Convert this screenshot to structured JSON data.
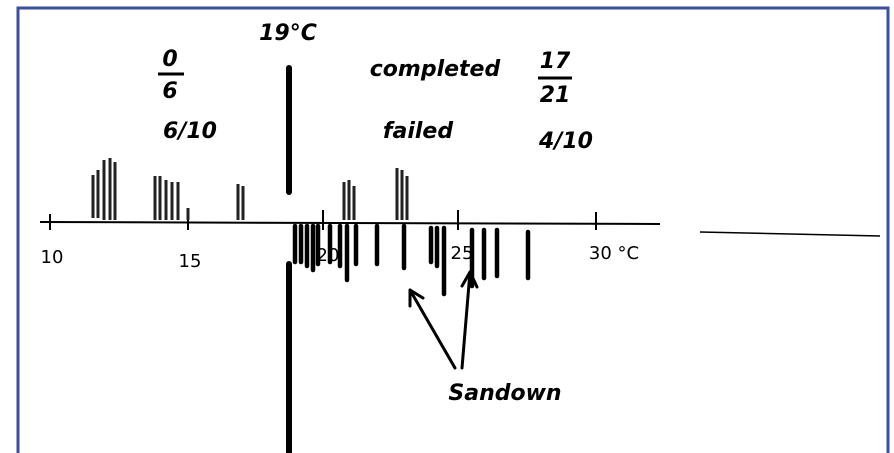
{
  "annotations": {
    "temperature_line": "19°C",
    "left_fraction": {
      "numerator": "0",
      "denominator": "6"
    },
    "left_ratio": "6/10",
    "completed": "completed",
    "failed": "failed",
    "right_fraction": {
      "numerator": "17",
      "denominator": "21"
    },
    "right_ratio": "4/10",
    "arrow_label": "Sandown"
  },
  "axis": {
    "ticks": [
      "10",
      "15",
      "20",
      "25",
      "30 °C"
    ]
  }
}
